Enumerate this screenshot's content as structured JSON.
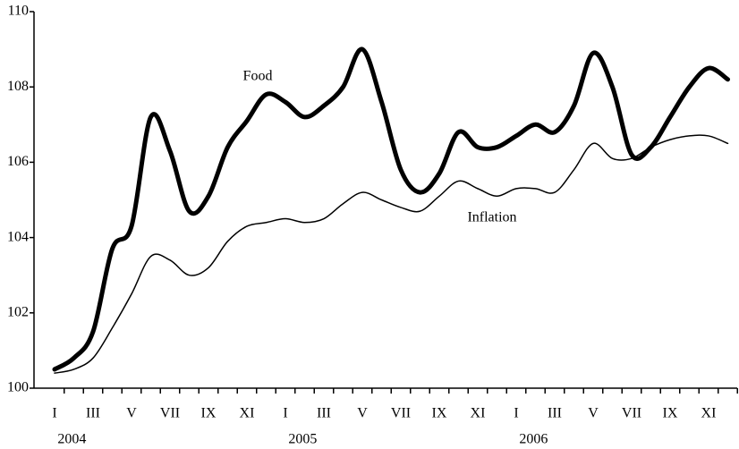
{
  "chart_data": {
    "type": "line",
    "categories": [
      "I",
      null,
      "III",
      null,
      "V",
      null,
      "VII",
      null,
      "IX",
      null,
      "XI",
      null,
      "I",
      null,
      "III",
      null,
      "V",
      null,
      "VII",
      null,
      "IX",
      null,
      "XI",
      null,
      "I",
      null,
      "III",
      null,
      "V",
      null,
      "VII",
      null,
      "IX",
      null,
      "XI",
      null
    ],
    "x_groups": [
      "2004",
      "2005",
      "2006"
    ],
    "series": [
      {
        "name": "Food",
        "color": "#000000",
        "width": 5,
        "values": [
          100.5,
          100.8,
          101.5,
          103.7,
          104.3,
          107.2,
          106.3,
          104.7,
          105.1,
          106.4,
          107.1,
          107.8,
          107.6,
          107.2,
          107.5,
          108.0,
          109.0,
          107.6,
          105.8,
          105.2,
          105.7,
          106.8,
          106.4,
          106.4,
          106.7,
          107.0,
          106.8,
          107.5,
          108.9,
          108.0,
          106.2,
          106.4,
          107.2,
          108.0,
          108.5,
          108.2
        ]
      },
      {
        "name": "Inflation",
        "color": "#000000",
        "width": 1.5,
        "values": [
          100.4,
          100.5,
          100.8,
          101.6,
          102.5,
          103.5,
          103.4,
          103.0,
          103.2,
          103.9,
          104.3,
          104.4,
          104.5,
          104.4,
          104.5,
          104.9,
          105.2,
          105.0,
          104.8,
          104.7,
          105.1,
          105.5,
          105.3,
          105.1,
          105.3,
          105.3,
          105.2,
          105.8,
          106.5,
          106.1,
          106.1,
          106.4,
          106.6,
          106.7,
          106.7,
          106.5
        ]
      }
    ],
    "ylim": [
      100,
      110
    ],
    "yticks": [
      100,
      102,
      104,
      106,
      108,
      110
    ],
    "grid": false
  }
}
